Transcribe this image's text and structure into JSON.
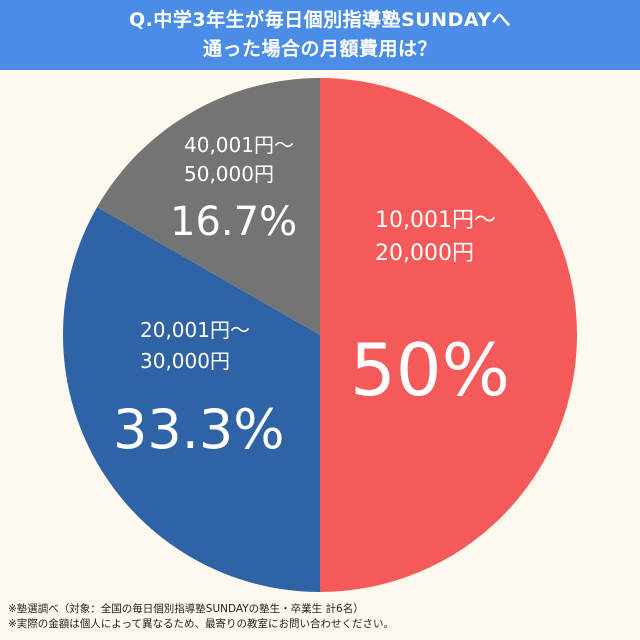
{
  "title": {
    "line1": "Q.中学3年生が毎日個別指導塾SUNDAYへ",
    "line2": "通った場合の月額費用は？"
  },
  "colors": {
    "title_bar": "#4a8ce6",
    "background": "#fdf9ee",
    "label_text": "#ffffff"
  },
  "chart_data": {
    "type": "pie",
    "start_angle_deg": 0,
    "direction": "clockwise",
    "slices": [
      {
        "label_line1": "10,001円〜",
        "label_line2": "20,000円",
        "value": 50,
        "value_label": "50%",
        "color": "#f45a5a"
      },
      {
        "label_line1": "20,001円〜",
        "label_line2": "30,000円",
        "value": 33.3,
        "value_label": "33.3%",
        "color": "#2f63a6"
      },
      {
        "label_line1": "40,001円〜",
        "label_line2": "50,000円",
        "value": 16.7,
        "value_label": "16.7%",
        "color": "#747474"
      }
    ]
  },
  "footnotes": [
    "※塾選調べ（対象：全国の毎日個別指導塾SUNDAYの塾生・卒業生 計6名）",
    "※実際の金額は個人によって異なるため、最寄りの教室にお問い合わせください。"
  ]
}
